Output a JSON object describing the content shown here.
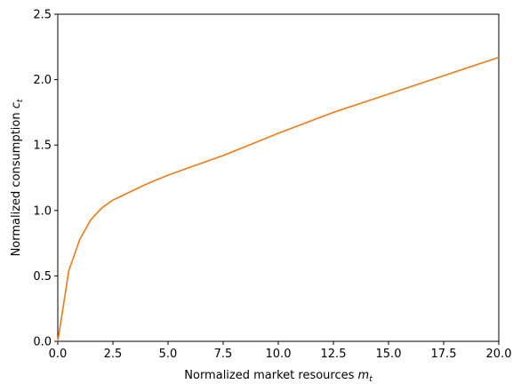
{
  "chart_data": {
    "type": "line",
    "xlabel": {
      "text": "Normalized market resources",
      "var": "m",
      "sub": "t"
    },
    "ylabel": {
      "text": "Normalized consumption",
      "var": "c",
      "sub": "t"
    },
    "x": [
      0,
      0.5,
      1,
      1.5,
      2,
      2.5,
      3,
      4,
      5,
      6,
      7.5,
      10,
      12.5,
      15,
      17.5,
      20
    ],
    "series": [
      {
        "color": "#1f77b4",
        "values": [
          0,
          0.54,
          0.78,
          0.93,
          1.02,
          1.08,
          1.12,
          1.2,
          1.27,
          1.33,
          1.42,
          1.59,
          1.75,
          1.89,
          2.03,
          2.17
        ]
      },
      {
        "color": "#ff7f0e",
        "values": [
          0,
          0.54,
          0.78,
          0.93,
          1.02,
          1.08,
          1.12,
          1.2,
          1.27,
          1.33,
          1.42,
          1.59,
          1.75,
          1.89,
          2.03,
          2.17
        ]
      }
    ],
    "xlim": [
      0,
      20
    ],
    "ylim": [
      0,
      2.5
    ],
    "xticks": [
      {
        "value": 0,
        "label": "0.0"
      },
      {
        "value": 2.5,
        "label": "2.5"
      },
      {
        "value": 5,
        "label": "5.0"
      },
      {
        "value": 7.5,
        "label": "7.5"
      },
      {
        "value": 10,
        "label": "10.0"
      },
      {
        "value": 12.5,
        "label": "12.5"
      },
      {
        "value": 15,
        "label": "15.0"
      },
      {
        "value": 17.5,
        "label": "17.5"
      },
      {
        "value": 20,
        "label": "20.0"
      }
    ],
    "yticks": [
      {
        "value": 0,
        "label": "0.0"
      },
      {
        "value": 0.5,
        "label": "0.5"
      },
      {
        "value": 1,
        "label": "1.0"
      },
      {
        "value": 1.5,
        "label": "1.5"
      },
      {
        "value": 2,
        "label": "2.0"
      },
      {
        "value": 2.5,
        "label": "2.5"
      }
    ]
  }
}
